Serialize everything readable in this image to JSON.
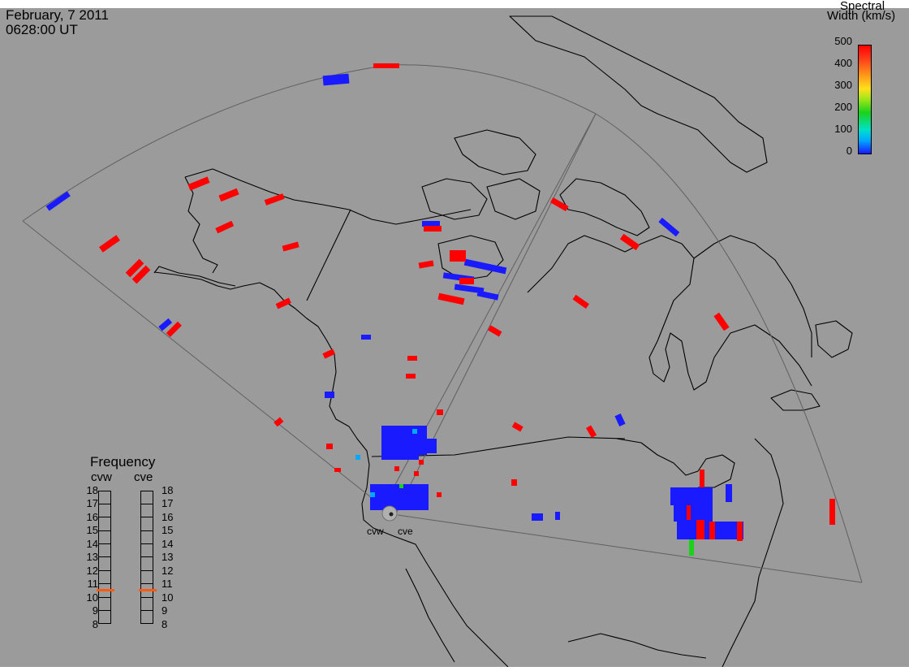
{
  "header": {
    "date": "February, 7 2011",
    "time": "0628:00 UT"
  },
  "colorbar": {
    "title_line1": "Spectral",
    "title_line2": "Width (km/s)",
    "ticks": [
      "500",
      "400",
      "300",
      "200",
      "100",
      "0"
    ],
    "colors": [
      "#ff0000",
      "#ff9a1a",
      "#ffe01a",
      "#1bd21b",
      "#00e0c8",
      "#1a1aff"
    ]
  },
  "frequency_panel": {
    "title": "Frequency",
    "radars": [
      {
        "name": "cvw",
        "selected": "11"
      },
      {
        "name": "cve",
        "selected": "11"
      }
    ],
    "scale": [
      "18",
      "17",
      "16",
      "15",
      "14",
      "13",
      "12",
      "11",
      "10",
      "9",
      "8"
    ]
  },
  "sites": [
    {
      "name": "cvw"
    },
    {
      "name": "cve"
    }
  ],
  "map": {
    "background_color": "#9b9b9b",
    "coast_color": "#000000",
    "fov_color": "#606060",
    "scatter_colors": {
      "low_width": "#1a1aff",
      "mid_width": "#00a8ff",
      "high_width": "#ff0000",
      "green": "#1bd21b"
    }
  }
}
